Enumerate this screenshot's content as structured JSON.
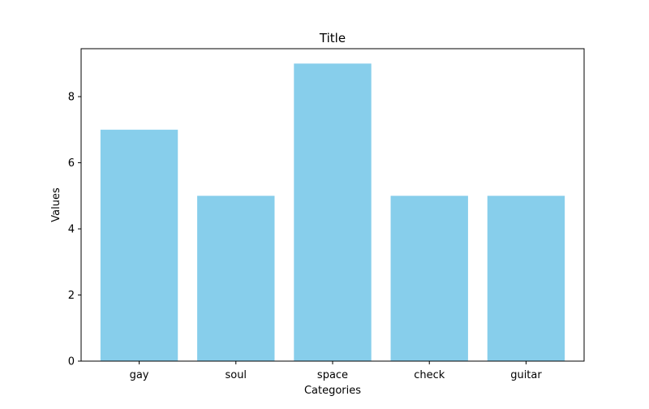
{
  "chart_data": {
    "type": "bar",
    "title": "Title",
    "xlabel": "Categories",
    "ylabel": "Values",
    "categories": [
      "gay",
      "soul",
      "space",
      "check",
      "guitar"
    ],
    "values": [
      7,
      5,
      9,
      5,
      5
    ],
    "ylim": [
      0,
      9.45
    ],
    "yticks": [
      0,
      2,
      4,
      6,
      8
    ],
    "bar_color": "#87CEEB",
    "grid": false,
    "legend": "none"
  }
}
